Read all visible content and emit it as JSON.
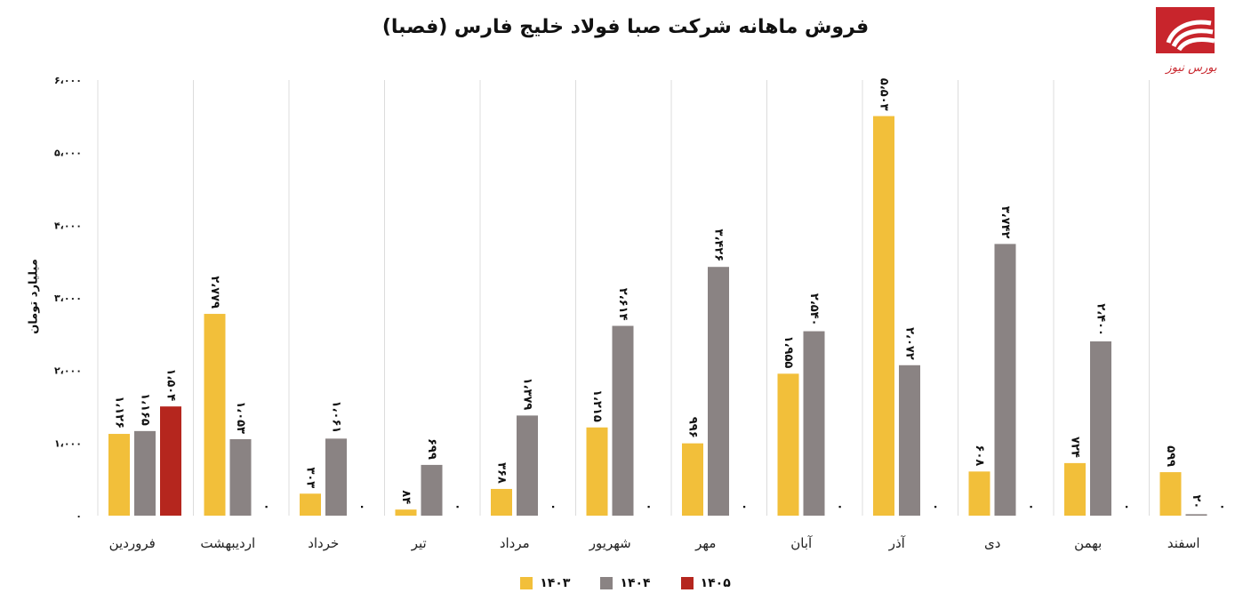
{
  "chart_data": {
    "type": "bar",
    "title": "فروش ماهانه شرکت صبا فولاد خلیج فارس (فصبا)",
    "ylabel": "میلیارد تومان",
    "xlabel": "",
    "ylim": [
      0,
      6000
    ],
    "y_ticks": [
      0,
      1000,
      2000,
      3000,
      4000,
      5000,
      6000
    ],
    "y_tick_labels": [
      "۰",
      "۱،۰۰۰",
      "۲،۰۰۰",
      "۳،۰۰۰",
      "۴،۰۰۰",
      "۵،۰۰۰",
      "۶،۰۰۰"
    ],
    "grid": "vertical separators",
    "legend_position": "bottom",
    "categories": [
      "فروردین",
      "اردیبهشت",
      "خرداد",
      "تیر",
      "مرداد",
      "شهریور",
      "مهر",
      "آبان",
      "آذر",
      "دی",
      "بهمن",
      "اسفند"
    ],
    "series": [
      {
        "name": "۱۴۰۳",
        "color": "#F2BF3A",
        "values": [
          1126,
          2779,
          303,
          84,
          368,
          1215,
          996,
          1955,
          5503,
          608,
          724,
          599
        ],
        "labels": [
          "۱،۱۲۶",
          "۲،۷۷۹",
          "۳۰۳",
          "۸۴",
          "۳۶۸",
          "۱،۲۱۵",
          "۹۹۶",
          "۱،۹۵۵",
          "۵،۵۰۳",
          "۶۰۸",
          "۷۲۴",
          "۵۹۹"
        ]
      },
      {
        "name": "۱۴۰۴",
        "color": "#8A8383",
        "values": [
          1165,
          1053,
          1061,
          699,
          1379,
          2614,
          3426,
          2540,
          2072,
          3742,
          2400,
          20
        ],
        "labels": [
          "۱،۱۶۵",
          "۱،۰۵۳",
          "۱،۰۶۱",
          "۶۹۹",
          "۱،۳۷۹",
          "۲،۶۱۴",
          "۳،۴۲۶",
          "۲،۵۴۰",
          "۲،۰۷۲",
          "۳،۷۴۲",
          "۲،۴۰۰",
          "۲۰"
        ]
      },
      {
        "name": "۱۴۰۵",
        "color": "#B5261E",
        "values": [
          1504,
          0,
          0,
          0,
          0,
          0,
          0,
          0,
          0,
          0,
          0,
          0
        ],
        "labels": [
          "۱،۵۰۴",
          "۰",
          "۰",
          "۰",
          "۰",
          "۰",
          "۰",
          "۰",
          "۰",
          "۰",
          "۰",
          "۰"
        ]
      }
    ]
  },
  "logo": {
    "name": "bourse-news-logo",
    "text": "بورس نیوز",
    "color": "#C8252C"
  }
}
